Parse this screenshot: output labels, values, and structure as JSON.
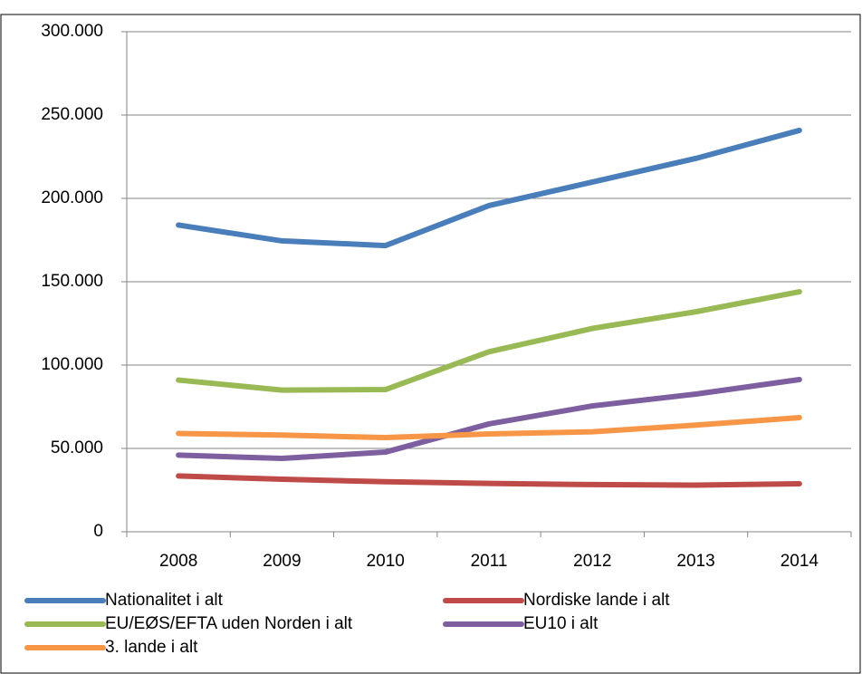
{
  "chart_data": {
    "type": "line",
    "categories": [
      "2008",
      "2009",
      "2010",
      "2011",
      "2012",
      "2013",
      "2014"
    ],
    "series": [
      {
        "name": "Nationalitet i alt",
        "color": "#4a7ebb",
        "values": [
          184000,
          174500,
          171700,
          195700,
          209800,
          224000,
          240800
        ]
      },
      {
        "name": "Nordiske lande i alt",
        "color": "#be4b48",
        "values": [
          33500,
          31500,
          30000,
          29000,
          28300,
          28000,
          28800
        ]
      },
      {
        "name": "EU/EØS/EFTA uden Norden i alt",
        "color": "#98b954",
        "values": [
          91000,
          85000,
          85300,
          108000,
          122000,
          132000,
          144000
        ]
      },
      {
        "name": "EU10 i alt",
        "color": "#7d5fa0",
        "values": [
          46000,
          44000,
          47800,
          64700,
          75500,
          82600,
          91300
        ]
      },
      {
        "name": "3. lande i alt",
        "color": "#f79646",
        "values": [
          59000,
          58000,
          56500,
          58700,
          60000,
          64000,
          68500
        ]
      }
    ],
    "ylim": [
      0,
      300000
    ],
    "yticks": [
      0,
      {
        "value": 50000,
        "label": "50.000"
      },
      {
        "value": 100000,
        "label": "100.000"
      },
      {
        "value": 150000,
        "label": "150.000"
      },
      {
        "value": 200000,
        "label": "200.000"
      },
      {
        "value": 250000,
        "label": "250.000"
      },
      {
        "value": 300000,
        "label": "300.000"
      }
    ],
    "grid": true
  }
}
